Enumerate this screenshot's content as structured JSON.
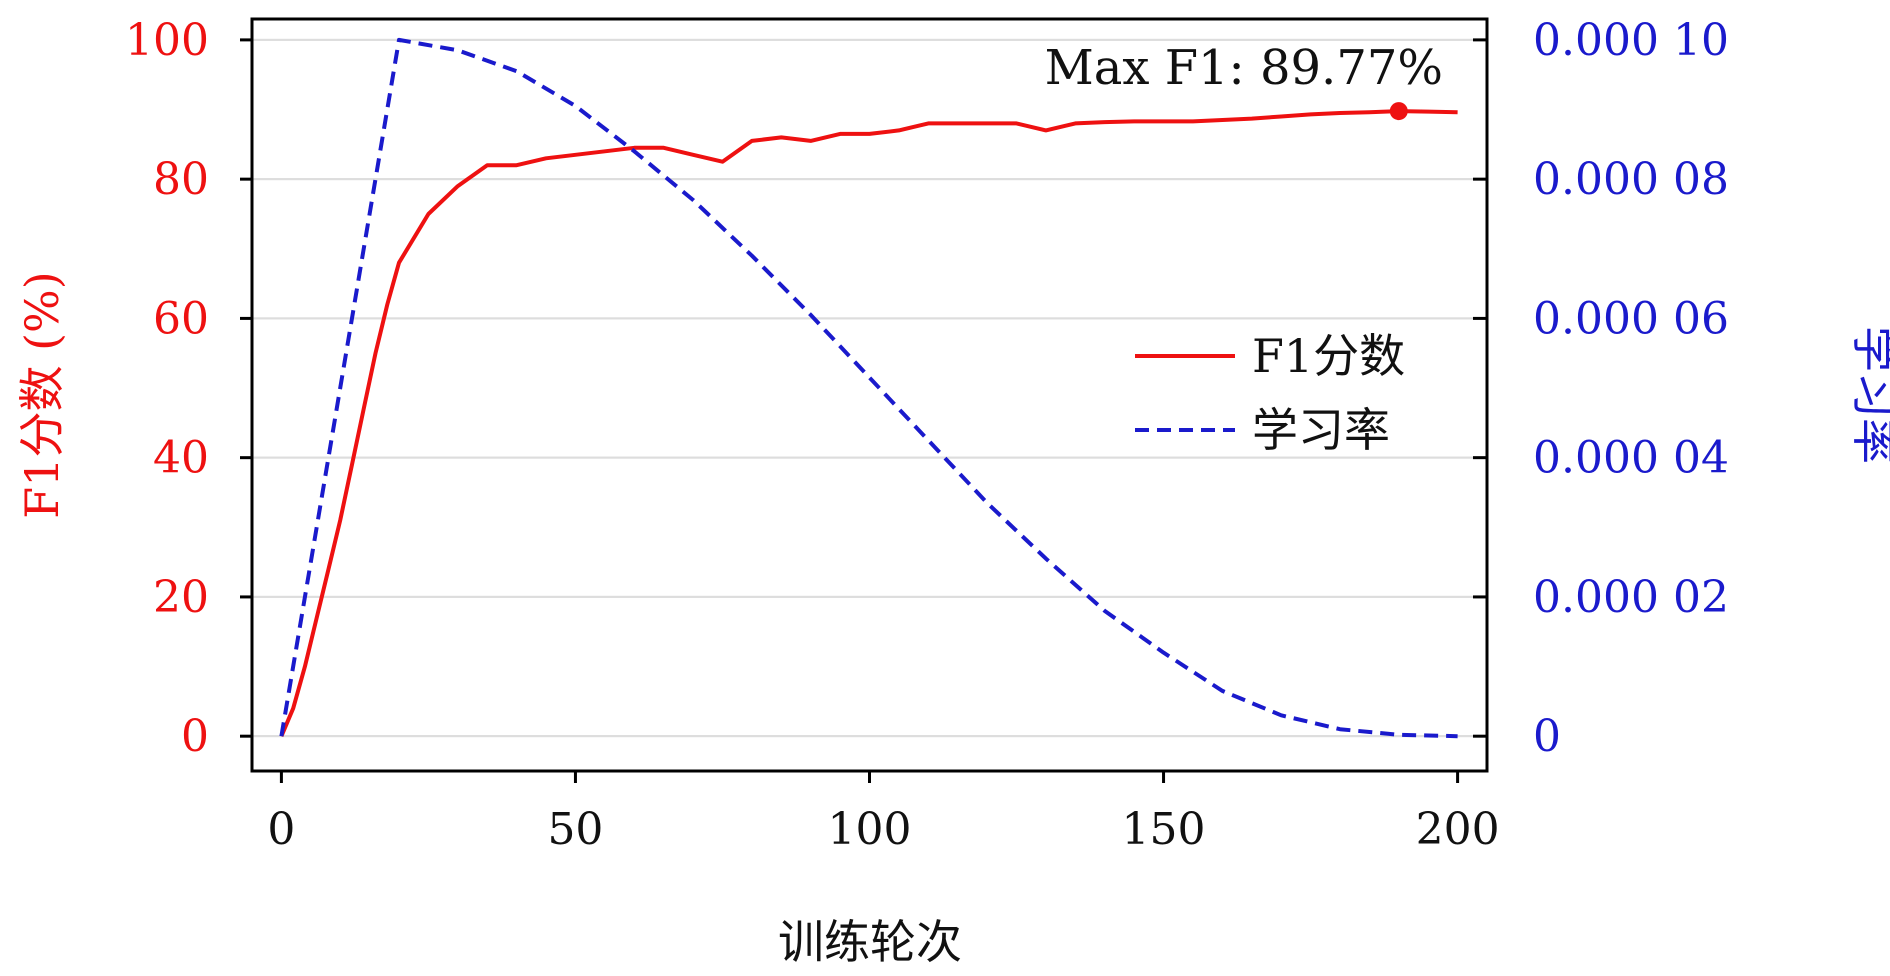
{
  "chart_data": {
    "type": "line",
    "xlabel": "训练轮次",
    "ylabel_left": "F1分数 (%)",
    "ylabel_right": "学习率",
    "xlim": [
      -5,
      205
    ],
    "ylim_left": [
      -5,
      103
    ],
    "ylim_right": [
      -5e-06,
      0.000103
    ],
    "x_ticks": [
      0,
      50,
      100,
      150,
      200
    ],
    "y_left_ticks": [
      0,
      20,
      40,
      60,
      80,
      100
    ],
    "y_right_ticks": [
      0,
      2e-05,
      4e-05,
      6e-05,
      8e-05,
      0.0001
    ],
    "y_right_tick_labels": [
      "0",
      "0.000 02",
      "0.000 04",
      "0.000 06",
      "0.000 08",
      "0.000 10"
    ],
    "grid": "horizontal",
    "legend_position": "center-right",
    "colors": {
      "f1": "#ee1111",
      "lr": "#1a1acc",
      "left_axis_text": "#ee1111",
      "right_axis_text": "#1a1acc",
      "grid": "#dddddd",
      "frame": "#000000"
    },
    "annotation": {
      "text": "Max F1: 89.77%",
      "x": 190,
      "y": 89.77
    },
    "series": [
      {
        "name": "F1分数",
        "axis": "left",
        "style": "solid",
        "x": [
          0,
          2,
          4,
          6,
          8,
          10,
          12,
          14,
          16,
          18,
          20,
          25,
          30,
          35,
          40,
          45,
          50,
          55,
          60,
          65,
          70,
          75,
          80,
          85,
          90,
          95,
          100,
          105,
          110,
          115,
          120,
          125,
          130,
          135,
          140,
          145,
          150,
          155,
          160,
          165,
          170,
          175,
          180,
          185,
          190,
          195,
          200
        ],
        "y": [
          0,
          4,
          10,
          17,
          24,
          31,
          39,
          47,
          55,
          62,
          68,
          75,
          79,
          82,
          82,
          83,
          83.5,
          84,
          84.5,
          84.5,
          83.5,
          82.5,
          85.5,
          86,
          85.5,
          86.5,
          86.5,
          87,
          88,
          88,
          88,
          88,
          87,
          88,
          88.2,
          88.3,
          88.3,
          88.3,
          88.5,
          88.7,
          89,
          89.3,
          89.5,
          89.6,
          89.77,
          89.7,
          89.6
        ]
      },
      {
        "name": "学习率",
        "axis": "right",
        "style": "dashed",
        "x": [
          0,
          20,
          30,
          40,
          50,
          60,
          70,
          80,
          90,
          100,
          110,
          120,
          130,
          140,
          150,
          160,
          170,
          180,
          190,
          200
        ],
        "y": [
          0,
          0.0001,
          9.85e-05,
          9.55e-05,
          9.05e-05,
          8.4e-05,
          7.7e-05,
          6.9e-05,
          6.05e-05,
          5.15e-05,
          4.25e-05,
          3.35e-05,
          2.55e-05,
          1.8e-05,
          1.2e-05,
          6.5e-06,
          3e-06,
          1e-06,
          2e-07,
          0
        ]
      }
    ]
  }
}
